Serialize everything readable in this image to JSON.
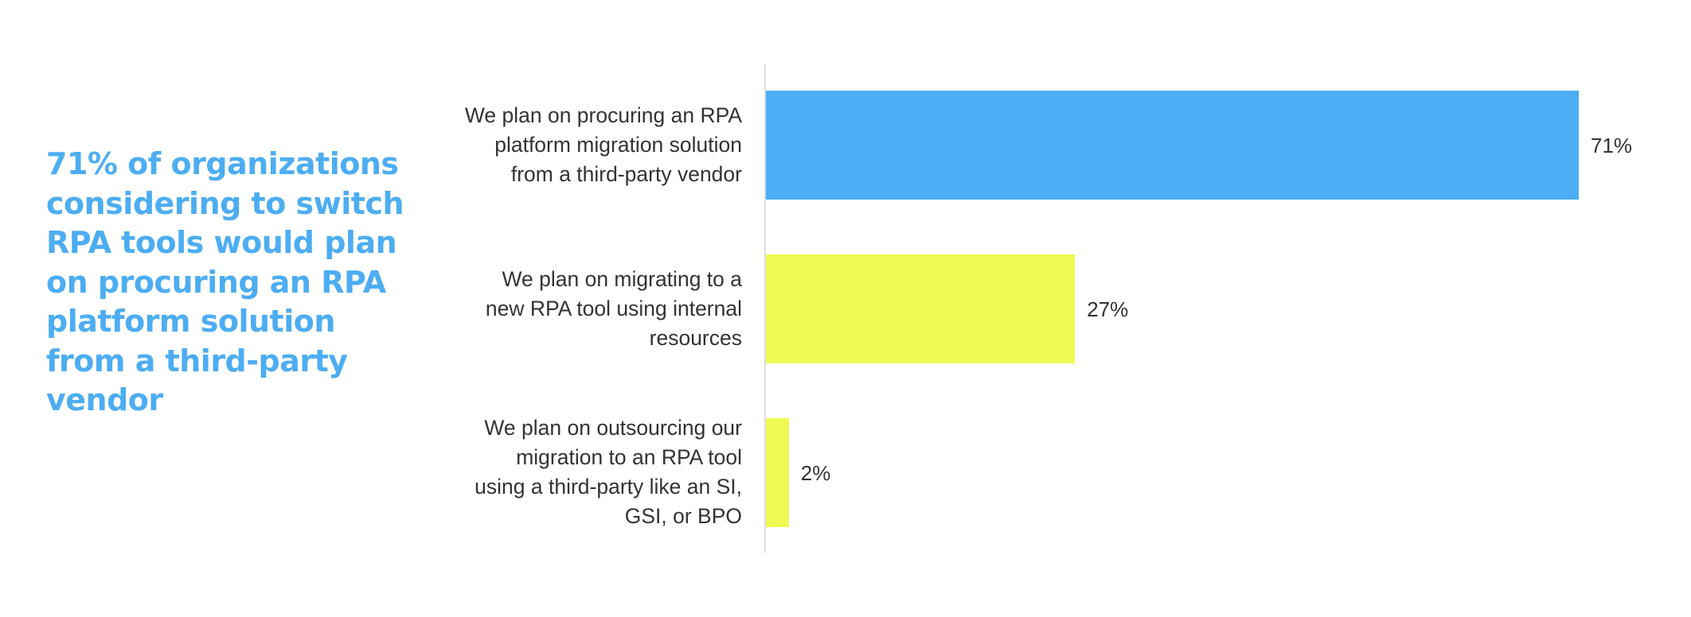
{
  "headline": {
    "lines": [
      "71% of organizations",
      "considering to switch",
      "RPA tools would plan",
      "on procuring an RPA",
      "platform solution",
      "from a third-party",
      "vendor"
    ],
    "color": "#4DADF2"
  },
  "chart_data": {
    "type": "bar",
    "orientation": "horizontal",
    "title": "",
    "xlabel": "",
    "ylabel": "",
    "categories": [
      "We plan on procuring an RPA platform migration solution from a third-party vendor",
      "We plan on migrating to a new RPA tool using internal resources",
      "We plan on outsourcing our migration to an RPA tool using a third-party like an SI, GSI, or BPO"
    ],
    "values": [
      71,
      27,
      2
    ],
    "value_labels": [
      "71%",
      "27%",
      "2%"
    ],
    "unit": "%",
    "colors": [
      "#4DADF5",
      "#EEFA52",
      "#EEFA52"
    ],
    "xlim": [
      0,
      75
    ],
    "grid": false,
    "legend": null
  },
  "bars": [
    {
      "label_lines": [
        "We plan on procuring an RPA",
        "platform migration solution",
        "from a third-party vendor"
      ],
      "value_label": "71%",
      "color": "#4DADF5"
    },
    {
      "label_lines": [
        "We plan on migrating to a",
        "new RPA tool using internal",
        "resources"
      ],
      "value_label": "27%",
      "color": "#EEFA52"
    },
    {
      "label_lines": [
        "We plan on outsourcing our",
        "migration to an RPA tool",
        "using a third-party like an SI,",
        "GSI, or BPO"
      ],
      "value_label": "2%",
      "color": "#EEFA52"
    }
  ]
}
